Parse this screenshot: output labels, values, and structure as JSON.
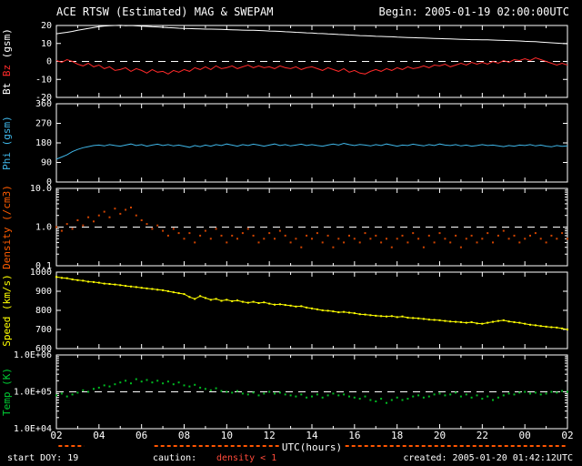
{
  "header": {
    "title": "ACE RTSW (Estimated) MAG & SWEPAM",
    "begin": "Begin: 2005-01-19 02:00:00UTC"
  },
  "footer": {
    "start_doy": "start DOY: 19",
    "caution_label": "caution:",
    "caution_value": "density < 1",
    "created": "created: 2005-01-20 01:42:12UTC"
  },
  "chart_data": {
    "type": "line",
    "title": "ACE RTSW (Estimated) MAG & SWEPAM",
    "x_label": "UTC(hours)",
    "x_range": [
      2,
      26
    ],
    "x_tick_labels": [
      "02",
      "04",
      "06",
      "08",
      "10",
      "12",
      "14",
      "16",
      "18",
      "20",
      "22",
      "00",
      "02"
    ],
    "caution_color": "#ff5500",
    "caution_segments": [
      [
        2.1,
        3.3
      ],
      [
        6.6,
        25.9
      ]
    ],
    "panels": [
      {
        "name": "bt-bz",
        "ylabel_parts": [
          {
            "text": "Bt",
            "color": "#ffffff"
          },
          {
            "text": "Bz",
            "color": "#ff2a2a"
          },
          {
            "text": "(gsm)",
            "color": "#ffffff"
          }
        ],
        "scale": "linear",
        "ylim": [
          -20,
          20
        ],
        "yticks": [
          20,
          10,
          0,
          -10,
          -20
        ],
        "ytick_labels": [
          "20",
          "10",
          "0",
          "-10",
          "-20"
        ],
        "dashed_y": 0,
        "series": [
          {
            "name": "Bt",
            "color": "#ffffff",
            "style": "line",
            "values": [
              15.4,
              15.8,
              16.2,
              16.7,
              17.3,
              17.8,
              18.4,
              18.9,
              19.4,
              19.7,
              19.9,
              20.0,
              20.1,
              19.9,
              20.0,
              19.8,
              19.6,
              19.5,
              19.3,
              19.2,
              19.0,
              18.8,
              18.7,
              18.5,
              18.4,
              18.3,
              18.2,
              18.1,
              18.0,
              18.0,
              17.9,
              17.8,
              17.7,
              17.6,
              17.5,
              17.4,
              17.3,
              17.3,
              17.2,
              17.1,
              16.9,
              16.8,
              16.7,
              16.5,
              16.4,
              16.2,
              16.1,
              15.9,
              15.8,
              15.6,
              15.5,
              15.3,
              15.2,
              15.0,
              14.9,
              14.7,
              14.6,
              14.4,
              14.3,
              14.2,
              14.0,
              13.9,
              13.8,
              13.7,
              13.5,
              13.4,
              13.3,
              13.2,
              13.1,
              13.0,
              12.9,
              12.8,
              12.7,
              12.6,
              12.5,
              12.4,
              12.3,
              12.2,
              12.1,
              12.1,
              12.0,
              12.0,
              11.9,
              11.8,
              11.7,
              11.6,
              11.5,
              11.4,
              11.2,
              11.1,
              11.0,
              10.8,
              10.6,
              10.4,
              10.2,
              10.0,
              9.8
            ]
          },
          {
            "name": "Bz",
            "color": "#ff2a2a",
            "style": "line",
            "values": [
              0.5,
              -0.5,
              1.0,
              0.0,
              -1.5,
              -2.5,
              -1.0,
              -3.0,
              -2.0,
              -4.0,
              -3.0,
              -5.0,
              -4.5,
              -3.5,
              -5.5,
              -4.0,
              -5.0,
              -6.5,
              -4.5,
              -6.0,
              -5.5,
              -7.0,
              -5.0,
              -6.0,
              -4.5,
              -5.5,
              -3.5,
              -4.5,
              -3.0,
              -4.5,
              -2.5,
              -4.0,
              -3.5,
              -2.5,
              -4.0,
              -3.0,
              -2.0,
              -3.5,
              -2.5,
              -3.5,
              -3.0,
              -4.0,
              -2.5,
              -3.5,
              -4.0,
              -3.0,
              -4.5,
              -3.5,
              -3.0,
              -4.0,
              -5.0,
              -3.5,
              -4.5,
              -5.5,
              -4.0,
              -6.0,
              -5.0,
              -6.5,
              -7.0,
              -5.5,
              -4.5,
              -5.5,
              -4.0,
              -5.0,
              -3.5,
              -4.5,
              -3.0,
              -4.0,
              -3.5,
              -2.5,
              -3.5,
              -2.0,
              -2.5,
              -1.5,
              -3.0,
              -2.0,
              -1.0,
              -2.0,
              -0.5,
              -1.5,
              -0.5,
              -1.5,
              0.0,
              -1.0,
              0.5,
              -0.5,
              1.0,
              0.5,
              1.5,
              0.5,
              2.0,
              1.0,
              0.0,
              -1.0,
              -2.0,
              -1.0,
              -2.0
            ]
          }
        ]
      },
      {
        "name": "phi",
        "ylabel_parts": [
          {
            "text": "Phi",
            "color": "#3fb6e8"
          },
          {
            "text": "(gsm)",
            "color": "#3fb6e8"
          }
        ],
        "scale": "linear",
        "ylim": [
          0,
          360
        ],
        "yticks": [
          360,
          270,
          180,
          90,
          0
        ],
        "ytick_labels": [
          "360",
          "270",
          "180",
          "90",
          "0"
        ],
        "series": [
          {
            "name": "Phi",
            "color": "#3fb6e8",
            "style": "line",
            "values": [
              105,
              115,
              125,
              140,
              150,
              158,
              163,
              168,
              170,
              166,
              172,
              168,
              165,
              170,
              175,
              168,
              172,
              165,
              170,
              174,
              168,
              172,
              166,
              170,
              165,
              160,
              168,
              163,
              170,
              165,
              172,
              168,
              175,
              170,
              165,
              172,
              168,
              174,
              170,
              165,
              170,
              175,
              168,
              172,
              166,
              170,
              174,
              168,
              172,
              168,
              165,
              170,
              175,
              170,
              178,
              172,
              168,
              173,
              170,
              166,
              172,
              168,
              175,
              170,
              165,
              170,
              168,
              174,
              170,
              166,
              172,
              168,
              175,
              170,
              168,
              172,
              166,
              170,
              165,
              168,
              172,
              168,
              170,
              166,
              163,
              168,
              165,
              170,
              168,
              172,
              166,
              170,
              165,
              162,
              168,
              164,
              166
            ]
          }
        ]
      },
      {
        "name": "density",
        "ylabel_parts": [
          {
            "text": "Density",
            "color": "#ff5c00"
          },
          {
            "text": "(/cm3)",
            "color": "#ff5c00"
          }
        ],
        "scale": "log",
        "ylim": [
          0.1,
          10
        ],
        "yticks": [
          10,
          1,
          0.1
        ],
        "ytick_labels": [
          "10.0",
          "1.0",
          "0.1"
        ],
        "dashed_y": 1,
        "series": [
          {
            "name": "Density",
            "color": "#d04400",
            "style": "dots",
            "values": [
              1.0,
              0.8,
              1.2,
              0.9,
              1.5,
              1.1,
              1.8,
              1.4,
              2.0,
              2.5,
              1.8,
              3.0,
              2.2,
              2.8,
              3.2,
              2.0,
              1.5,
              1.2,
              0.9,
              1.1,
              0.8,
              0.6,
              0.9,
              0.7,
              0.5,
              0.7,
              0.4,
              0.6,
              0.8,
              0.5,
              0.9,
              0.6,
              0.4,
              0.6,
              0.5,
              0.7,
              0.9,
              0.6,
              0.4,
              0.5,
              0.7,
              0.5,
              0.8,
              0.6,
              0.4,
              0.5,
              0.3,
              0.6,
              0.5,
              0.7,
              0.4,
              0.6,
              0.3,
              0.5,
              0.4,
              0.6,
              0.5,
              0.4,
              0.7,
              0.5,
              0.6,
              0.4,
              0.5,
              0.3,
              0.5,
              0.6,
              0.4,
              0.7,
              0.5,
              0.3,
              0.6,
              0.4,
              0.7,
              0.5,
              0.4,
              0.6,
              0.3,
              0.5,
              0.6,
              0.4,
              0.5,
              0.7,
              0.4,
              0.6,
              0.8,
              0.5,
              0.6,
              0.4,
              0.5,
              0.6,
              0.7,
              0.5,
              0.4,
              0.6,
              0.5,
              0.7,
              0.5
            ]
          }
        ]
      },
      {
        "name": "speed",
        "ylabel_parts": [
          {
            "text": "Speed",
            "color": "#ffff00"
          },
          {
            "text": "(km/s)",
            "color": "#ffff00"
          }
        ],
        "scale": "linear",
        "ylim": [
          600,
          1000
        ],
        "yticks": [
          1000,
          900,
          800,
          700,
          600
        ],
        "ytick_labels": [
          "1000",
          "900",
          "800",
          "700",
          "600"
        ],
        "series": [
          {
            "name": "Speed",
            "color": "#ffff00",
            "style": "dots-line",
            "values": [
              975,
              970,
              968,
              962,
              958,
              955,
              950,
              948,
              945,
              940,
              938,
              935,
              932,
              928,
              925,
              922,
              918,
              915,
              912,
              908,
              905,
              900,
              895,
              890,
              885,
              870,
              860,
              875,
              865,
              855,
              860,
              850,
              855,
              848,
              852,
              845,
              840,
              845,
              838,
              842,
              835,
              830,
              832,
              828,
              825,
              820,
              822,
              815,
              810,
              805,
              800,
              798,
              795,
              790,
              792,
              788,
              785,
              780,
              778,
              775,
              772,
              770,
              768,
              770,
              765,
              768,
              762,
              760,
              758,
              755,
              752,
              750,
              748,
              745,
              742,
              740,
              738,
              735,
              738,
              732,
              730,
              735,
              740,
              745,
              748,
              742,
              738,
              735,
              730,
              725,
              722,
              718,
              715,
              712,
              710,
              705,
              700
            ]
          }
        ]
      },
      {
        "name": "temp",
        "ylabel_parts": [
          {
            "text": "Temp",
            "color": "#00cc33"
          },
          {
            "text": "(K)",
            "color": "#00cc33"
          }
        ],
        "scale": "log",
        "ylim": [
          10000,
          1000000
        ],
        "yticks": [
          1000000,
          100000,
          10000
        ],
        "ytick_labels": [
          "1.0E+06",
          "1.0E+05",
          "1.0E+04"
        ],
        "dashed_y": 100000,
        "series": [
          {
            "name": "Temp",
            "color": "#00bb22",
            "style": "dots",
            "values": [
              80000,
              90000,
              75000,
              85000,
              95000,
              110000,
              100000,
              120000,
              130000,
              150000,
              140000,
              160000,
              180000,
              200000,
              170000,
              220000,
              190000,
              210000,
              180000,
              200000,
              170000,
              190000,
              160000,
              180000,
              150000,
              140000,
              155000,
              130000,
              120000,
              110000,
              125000,
              105000,
              100000,
              95000,
              105000,
              90000,
              85000,
              95000,
              80000,
              90000,
              100000,
              90000,
              95000,
              85000,
              80000,
              75000,
              85000,
              70000,
              75000,
              85000,
              70000,
              80000,
              90000,
              80000,
              85000,
              75000,
              70000,
              65000,
              75000,
              60000,
              55000,
              65000,
              50000,
              60000,
              70000,
              60000,
              65000,
              75000,
              80000,
              70000,
              75000,
              85000,
              90000,
              80000,
              85000,
              95000,
              75000,
              85000,
              70000,
              80000,
              65000,
              75000,
              60000,
              70000,
              80000,
              90000,
              85000,
              95000,
              100000,
              90000,
              95000,
              85000,
              90000,
              100000,
              95000,
              105000,
              100000
            ]
          }
        ]
      }
    ]
  }
}
